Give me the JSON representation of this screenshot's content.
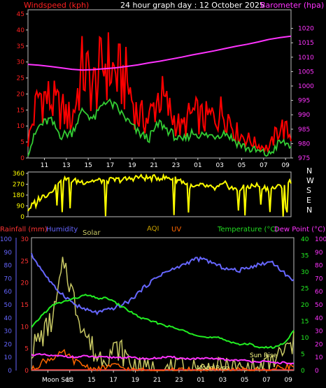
{
  "header": {
    "left_label": "Windspeed (kph)",
    "center_title": "24 hour graph day : 12 October 2025",
    "right_label": "Barometer (hpa)"
  },
  "colors": {
    "background": "#000000",
    "plot_bg": "#000000",
    "frame": "#cccccc",
    "tick_text": "#ffffff",
    "windspeed": "#ff0000",
    "windspeed_text": "#ff2020",
    "avg_wind": "#33cc33",
    "barometer": "#ff33ff",
    "direction": "#ffff00",
    "rainfall": "#ff3333",
    "humidity": "#6666ff",
    "solar": "#c8c864",
    "aqi": "#c8a000",
    "uv": "#ff6600",
    "temperature": "#22ee22",
    "dew_point": "#ff33ff",
    "legend_temp": "#22dd22",
    "legend_dew": "#ff33ff"
  },
  "time_ticks": [
    "11",
    "13",
    "15",
    "17",
    "19",
    "21",
    "23",
    "01",
    "03",
    "05",
    "07",
    "09"
  ],
  "chart_data": [
    {
      "type": "line",
      "title": "24 hour graph day : 12 October 2025",
      "x_axis": {
        "label": "",
        "ticks": [
          "11",
          "13",
          "15",
          "17",
          "19",
          "21",
          "23",
          "01",
          "03",
          "05",
          "07",
          "09"
        ],
        "range": [
          "09:30",
          "09:30 next day"
        ]
      },
      "y_left": {
        "label": "Windspeed (kph)",
        "ticks": [
          0,
          5,
          10,
          15,
          20,
          25,
          30,
          35,
          40,
          45
        ],
        "range": [
          0,
          45
        ]
      },
      "y_right": {
        "label": "Barometer (hpa)",
        "ticks": [
          975,
          980,
          985,
          990,
          995,
          1000,
          1005,
          1010,
          1015,
          1020
        ],
        "range": [
          975,
          1025
        ]
      },
      "x": [
        9.5,
        10.5,
        11.5,
        12.5,
        13.5,
        14.5,
        15.5,
        16.5,
        17.5,
        18.5,
        19.5,
        20.5,
        21.5,
        22.5,
        23.5,
        24.5,
        25.5,
        26.5,
        27.5,
        28.5,
        29.5,
        30.5,
        31.5,
        32.5,
        33.5
      ],
      "series": [
        {
          "name": "Windspeed (kph)",
          "axis": "left",
          "values": [
            5,
            20,
            18,
            15,
            12,
            28,
            22,
            30,
            26,
            24,
            13,
            12,
            20,
            14,
            9,
            14,
            12,
            13,
            15,
            8,
            6,
            4,
            3,
            10,
            7
          ]
        },
        {
          "name": "Barometer (hpa)",
          "axis": "right",
          "values": [
            1007.5,
            1007.2,
            1006.8,
            1006.3,
            1005.8,
            1005.5,
            1005.7,
            1006.0,
            1006.3,
            1006.8,
            1007.3,
            1008.0,
            1008.6,
            1009.3,
            1010.0,
            1010.8,
            1011.5,
            1012.2,
            1013.0,
            1013.8,
            1014.5,
            1015.3,
            1016.2,
            1016.8,
            1017.3
          ]
        }
      ],
      "avg_wind_values": [
        2,
        10,
        12,
        7,
        8,
        15,
        12,
        18,
        16,
        12,
        8,
        6,
        11,
        8,
        5,
        8,
        7,
        7,
        8,
        5,
        3,
        2,
        1,
        5,
        4
      ],
      "grid": false
    },
    {
      "type": "scatter",
      "title": "",
      "y_axis": {
        "ticks": [
          0,
          90,
          180,
          270,
          360
        ],
        "range": [
          0,
          360
        ]
      },
      "compass_labels": [
        "N",
        "W",
        "S",
        "E",
        "N"
      ],
      "x": [
        9.5,
        10.5,
        11.5,
        12.5,
        13.5,
        14.5,
        15.5,
        16.5,
        17.5,
        18.5,
        19.5,
        20.5,
        21.5,
        22.5,
        23.5,
        24.5,
        25.5,
        26.5,
        27.5,
        28.5,
        29.5,
        30.5,
        31.5,
        32.5,
        33.5
      ],
      "series": [
        {
          "name": "Wind direction",
          "values": [
            60,
            150,
            200,
            320,
            300,
            290,
            300,
            300,
            305,
            310,
            330,
            320,
            325,
            320,
            300,
            240,
            260,
            230,
            270,
            220,
            250,
            260,
            230,
            250,
            300
          ]
        }
      ]
    },
    {
      "type": "line",
      "title": "",
      "legend_labels": [
        "Rainfall (mm)",
        "Humidity",
        "Solar",
        "AQI",
        "UV",
        "Temperature (°C)",
        "Dew Point (°C)"
      ],
      "x_axis": {
        "ticks": [
          "Moon Set",
          "13",
          "15",
          "17",
          "19",
          "21",
          "23",
          "01",
          "03",
          "05",
          "07",
          "09"
        ]
      },
      "y_axes": {
        "humidity": {
          "ticks": [
            0,
            10,
            20,
            30,
            40,
            50,
            60,
            70,
            80,
            90,
            100
          ],
          "range": [
            0,
            100
          ]
        },
        "rainfall": {
          "ticks": [
            0,
            5,
            10,
            15,
            20,
            25,
            30
          ],
          "range": [
            0,
            30
          ]
        },
        "temperature": {
          "ticks": [
            0,
            5,
            10,
            15,
            20,
            25,
            30,
            35,
            40
          ],
          "range": [
            0,
            40
          ]
        },
        "dew_point": {
          "ticks": [
            0,
            10,
            20,
            30,
            40,
            50,
            60,
            70,
            80,
            90,
            100
          ],
          "range": [
            0,
            100
          ]
        }
      },
      "x": [
        9.5,
        10.5,
        11.5,
        12.5,
        13.5,
        14.5,
        15.5,
        16.5,
        17.5,
        18.5,
        19.5,
        20.5,
        21.5,
        22.5,
        23.5,
        24.5,
        25.5,
        26.5,
        27.5,
        28.5,
        29.5,
        30.5,
        31.5,
        32.5,
        33.5
      ],
      "series": [
        {
          "name": "Humidity",
          "axis": "humidity",
          "values": [
            88,
            76,
            64,
            57,
            50,
            46,
            44,
            46,
            49,
            53,
            61,
            68,
            74,
            77,
            81,
            85,
            84,
            80,
            77,
            76,
            79,
            81,
            83,
            75,
            68
          ]
        },
        {
          "name": "Temperature (°C)",
          "axis": "temperature",
          "values": [
            13,
            17,
            20,
            21,
            22,
            23,
            22,
            22,
            20,
            18,
            16,
            15,
            14,
            13,
            12,
            11,
            10,
            10,
            9,
            8,
            8,
            7,
            7,
            8,
            12
          ]
        },
        {
          "name": "Dew Point (°C)",
          "axis": "dew_point",
          "values": [
            12,
            12,
            11,
            11,
            10,
            11,
            10,
            10,
            10,
            10,
            9,
            9,
            10,
            10,
            9,
            9,
            9,
            9,
            8,
            8,
            7,
            7,
            6,
            6,
            5
          ]
        },
        {
          "name": "Solar",
          "axis": "rainfall",
          "values": [
            5,
            8,
            12,
            25,
            15,
            8,
            3,
            4,
            5,
            2,
            0,
            0,
            0,
            0,
            0,
            0,
            0,
            0,
            0,
            0,
            0,
            0,
            2,
            4,
            6
          ]
        },
        {
          "name": "UV",
          "axis": "rainfall",
          "values": [
            0,
            2,
            3,
            4,
            2,
            1,
            0,
            1,
            1,
            0,
            0,
            0,
            0,
            0,
            0,
            0,
            0,
            0,
            0,
            0,
            0,
            0,
            0,
            1,
            1
          ]
        },
        {
          "name": "Rainfall (mm)",
          "axis": "rainfall",
          "values": [
            0,
            0,
            0,
            0,
            0,
            0,
            0,
            0,
            0,
            0,
            0,
            0,
            0,
            0,
            0,
            0,
            0,
            0,
            0,
            0,
            0,
            0,
            0,
            0,
            0
          ]
        }
      ],
      "annotations": [
        "Moon Set",
        "Moon Rise",
        "Sun Rise"
      ]
    }
  ]
}
